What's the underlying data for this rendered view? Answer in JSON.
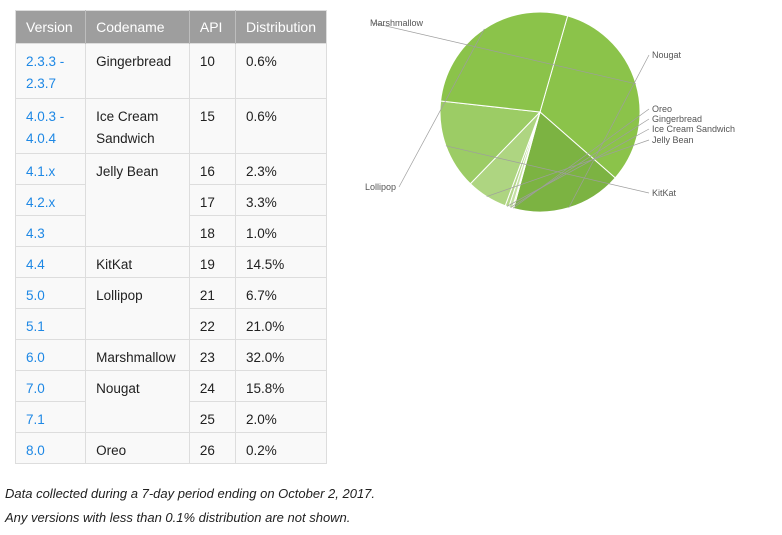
{
  "table": {
    "headers": [
      "Version",
      "Codename",
      "API",
      "Distribution"
    ],
    "rows": [
      {
        "version": "2.3.3 -\n2.3.7",
        "codename": "Gingerbread",
        "api": "10",
        "distribution": "0.6%"
      },
      {
        "version": "4.0.3 -\n4.0.4",
        "codename": "Ice Cream\nSandwich",
        "api": "15",
        "distribution": "0.6%"
      },
      {
        "version": "4.1.x",
        "codename": "Jelly Bean",
        "api": "16",
        "distribution": "2.3%"
      },
      {
        "version": "4.2.x",
        "codename": "",
        "api": "17",
        "distribution": "3.3%"
      },
      {
        "version": "4.3",
        "codename": "",
        "api": "18",
        "distribution": "1.0%"
      },
      {
        "version": "4.4",
        "codename": "KitKat",
        "api": "19",
        "distribution": "14.5%"
      },
      {
        "version": "5.0",
        "codename": "Lollipop",
        "api": "21",
        "distribution": "6.7%"
      },
      {
        "version": "5.1",
        "codename": "",
        "api": "22",
        "distribution": "21.0%"
      },
      {
        "version": "6.0",
        "codename": "Marshmallow",
        "api": "23",
        "distribution": "32.0%"
      },
      {
        "version": "7.0",
        "codename": "Nougat",
        "api": "24",
        "distribution": "15.8%"
      },
      {
        "version": "7.1",
        "codename": "",
        "api": "25",
        "distribution": "2.0%"
      },
      {
        "version": "8.0",
        "codename": "Oreo",
        "api": "26",
        "distribution": "0.2%"
      }
    ]
  },
  "chart_data": {
    "type": "pie",
    "slices": [
      {
        "label": "Marshmallow",
        "value": 32.0,
        "color": "#8bc34a"
      },
      {
        "label": "Nougat",
        "value": 17.8,
        "color": "#7cb342"
      },
      {
        "label": "Oreo",
        "value": 0.2,
        "color": "#cddc39"
      },
      {
        "label": "Gingerbread",
        "value": 0.6,
        "color": "#c5e1a5"
      },
      {
        "label": "Ice Cream Sandwich",
        "value": 0.6,
        "color": "#b4d68a"
      },
      {
        "label": "Jelly Bean",
        "value": 6.6,
        "color": "#aed581"
      },
      {
        "label": "KitKat",
        "value": 14.5,
        "color": "#9ccc65"
      },
      {
        "label": "Lollipop",
        "value": 27.7,
        "color": "#8bc34a"
      }
    ],
    "title": "",
    "legend": "none"
  },
  "notes": {
    "line1": "Data collected during a 7-day period ending on October 2, 2017.",
    "line2": "Any versions with less than 0.1% distribution are not shown."
  },
  "colors": {
    "header_bg": "#9e9e9e",
    "link": "#1e88e5"
  }
}
